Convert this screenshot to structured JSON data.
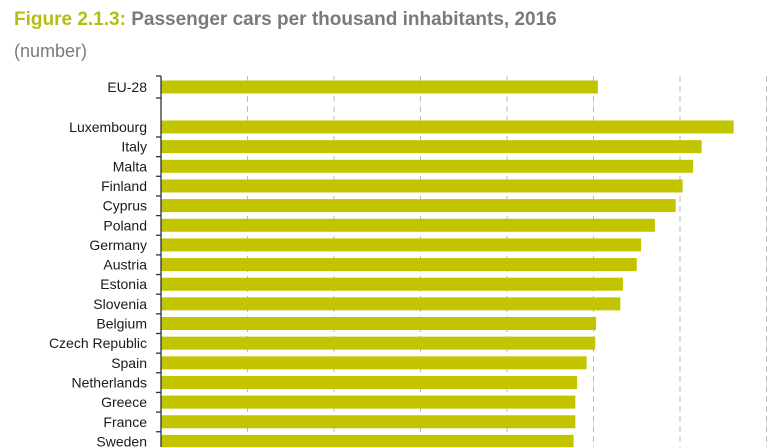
{
  "figure_label": "Figure 2.1.3:",
  "chart_data": {
    "type": "bar",
    "orientation": "horizontal",
    "title": "Passenger cars per thousand inhabitants, 2016",
    "subtitle": "(number)",
    "categories": [
      "EU-28",
      "Luxembourg",
      "Italy",
      "Malta",
      "Finland",
      "Cyprus",
      "Poland",
      "Germany",
      "Austria",
      "Estonia",
      "Slovenia",
      "Belgium",
      "Czech Republic",
      "Spain",
      "Netherlands",
      "Greece",
      "France",
      "Sweden"
    ],
    "values": [
      505,
      662,
      625,
      615,
      603,
      595,
      571,
      555,
      550,
      534,
      531,
      503,
      502,
      492,
      481,
      479,
      479,
      477
    ],
    "xlim": [
      0,
      700
    ],
    "gridlines": [
      100,
      200,
      300,
      400,
      500,
      600,
      700
    ],
    "grid": true,
    "bar_color": "#c3c400",
    "grid_color": "#bbbbbb"
  }
}
